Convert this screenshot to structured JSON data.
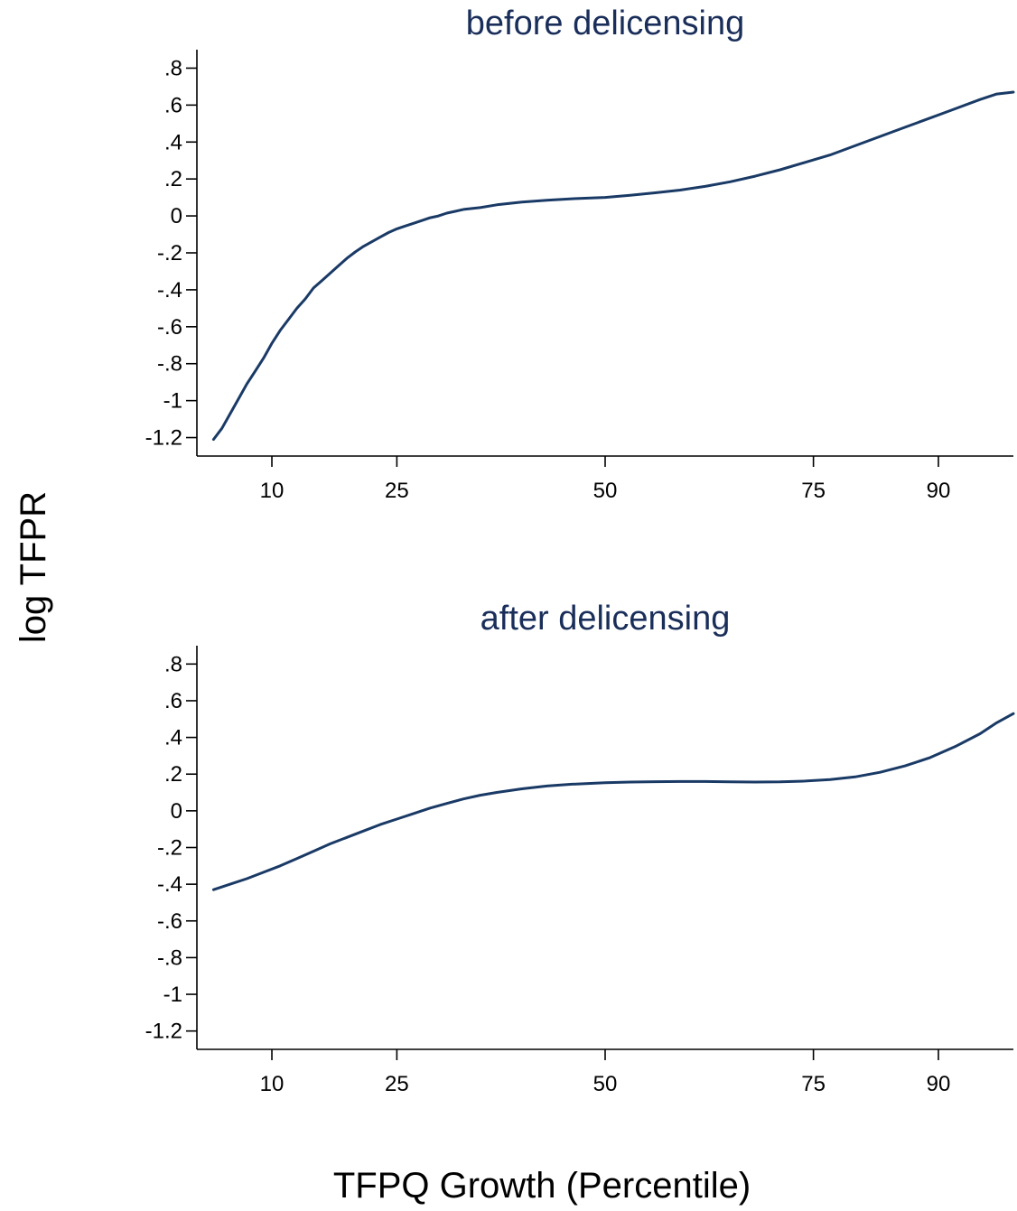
{
  "colors": {
    "line": "#1a3a66",
    "title": "#1a2e5a",
    "axis": "#000000"
  },
  "xlabel": "TFPQ Growth (Percentile)",
  "ylabel": "log TFPR",
  "chart_data": [
    {
      "type": "line",
      "title": "before delicensing",
      "xlim": [
        1,
        99
      ],
      "ylim": [
        -1.3,
        0.9
      ],
      "xticks": [
        10,
        25,
        50,
        75,
        90
      ],
      "xtick_labels": [
        "10",
        "25",
        "50",
        "75",
        "90"
      ],
      "yticks": [
        0.8,
        0.6,
        0.4,
        0.2,
        0,
        -0.2,
        -0.4,
        -0.6,
        -0.8,
        -1,
        -1.2
      ],
      "ytick_labels": [
        ".8",
        ".6",
        ".4",
        ".2",
        "0",
        "-.2",
        "-.4",
        "-.6",
        "-.8",
        "-1",
        "-1.2"
      ],
      "grid": false,
      "series": [
        {
          "x": [
            3,
            4,
            5,
            6,
            7,
            8,
            9,
            10,
            11,
            12,
            13,
            14,
            15,
            16,
            17,
            18,
            19,
            20,
            21,
            22,
            23,
            24,
            25,
            26,
            27,
            28,
            29,
            30,
            31,
            32,
            33,
            35,
            37,
            40,
            43,
            46,
            50,
            53,
            56,
            59,
            62,
            65,
            68,
            71,
            74,
            77,
            80,
            83,
            86,
            89,
            92,
            95,
            97,
            99
          ],
          "y": [
            -1.21,
            -1.15,
            -1.07,
            -0.99,
            -0.91,
            -0.84,
            -0.77,
            -0.69,
            -0.62,
            -0.56,
            -0.5,
            -0.45,
            -0.39,
            -0.35,
            -0.31,
            -0.27,
            -0.23,
            -0.195,
            -0.165,
            -0.14,
            -0.115,
            -0.09,
            -0.07,
            -0.055,
            -0.04,
            -0.025,
            -0.01,
            0.0,
            0.015,
            0.025,
            0.035,
            0.045,
            0.06,
            0.075,
            0.085,
            0.093,
            0.1,
            0.112,
            0.125,
            0.14,
            0.16,
            0.185,
            0.215,
            0.25,
            0.29,
            0.33,
            0.38,
            0.43,
            0.48,
            0.53,
            0.58,
            0.63,
            0.66,
            0.67
          ]
        }
      ]
    },
    {
      "type": "line",
      "title": "after delicensing",
      "xlim": [
        1,
        99
      ],
      "ylim": [
        -1.3,
        0.9
      ],
      "xticks": [
        10,
        25,
        50,
        75,
        90
      ],
      "xtick_labels": [
        "10",
        "25",
        "50",
        "75",
        "90"
      ],
      "yticks": [
        0.8,
        0.6,
        0.4,
        0.2,
        0,
        -0.2,
        -0.4,
        -0.6,
        -0.8,
        -1,
        -1.2
      ],
      "ytick_labels": [
        ".8",
        ".6",
        ".4",
        ".2",
        "0",
        "-.2",
        "-.4",
        "-.6",
        "-.8",
        "-1",
        "-1.2"
      ],
      "grid": false,
      "series": [
        {
          "x": [
            3,
            5,
            7,
            9,
            11,
            13,
            15,
            17,
            19,
            21,
            23,
            25,
            27,
            29,
            31,
            33,
            35,
            37,
            40,
            43,
            46,
            50,
            53,
            56,
            59,
            62,
            65,
            68,
            71,
            74,
            77,
            80,
            83,
            86,
            89,
            92,
            95,
            97,
            99
          ],
          "y": [
            -0.43,
            -0.4,
            -0.37,
            -0.335,
            -0.3,
            -0.26,
            -0.22,
            -0.18,
            -0.145,
            -0.11,
            -0.075,
            -0.045,
            -0.015,
            0.015,
            0.04,
            0.065,
            0.085,
            0.1,
            0.12,
            0.135,
            0.145,
            0.153,
            0.157,
            0.159,
            0.16,
            0.16,
            0.158,
            0.157,
            0.158,
            0.162,
            0.17,
            0.185,
            0.21,
            0.245,
            0.29,
            0.35,
            0.42,
            0.48,
            0.53
          ]
        }
      ]
    }
  ]
}
